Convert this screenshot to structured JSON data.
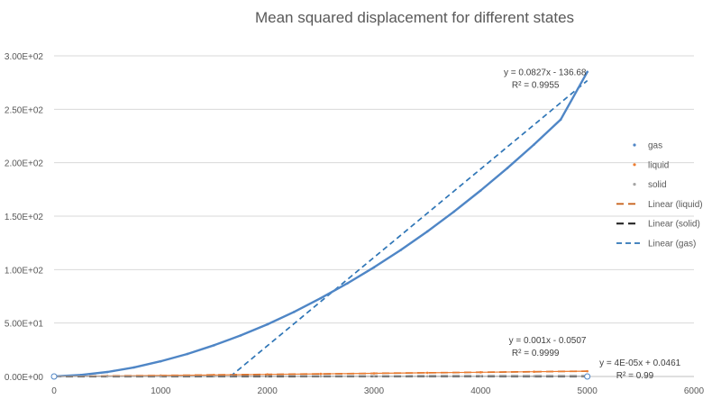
{
  "chart_data": {
    "type": "scatter",
    "title": "Mean squared displacement for different states",
    "xlabel": "",
    "ylabel": "",
    "xlim": [
      0,
      6000
    ],
    "ylim": [
      0,
      300
    ],
    "grid": {
      "y_major": true,
      "x_major": false
    },
    "x_ticks": [
      0,
      1000,
      2000,
      3000,
      4000,
      5000,
      6000
    ],
    "x_tick_labels": [
      "0",
      "1000",
      "2000",
      "3000",
      "4000",
      "5000",
      "6000"
    ],
    "y_ticks": [
      0,
      50,
      100,
      150,
      200,
      250,
      300
    ],
    "y_tick_labels": [
      "0.00E+00",
      "5.00E+01",
      "1.00E+02",
      "1.50E+02",
      "2.00E+02",
      "2.50E+02",
      "3.00E+02"
    ],
    "series": [
      {
        "name": "gas",
        "kind": "points",
        "color": "#4f86c6",
        "x": [
          0,
          250,
          500,
          750,
          1000,
          1250,
          1500,
          1750,
          2000,
          2250,
          2500,
          2750,
          3000,
          3250,
          3500,
          3750,
          4000,
          4250,
          4500,
          4750,
          5000
        ],
        "y": [
          0,
          1.4,
          4.2,
          8.5,
          14.2,
          21.1,
          29.2,
          38.4,
          48.8,
          60.4,
          73.2,
          87.1,
          102.1,
          118.3,
          135.7,
          154.3,
          174.0,
          194.9,
          217.0,
          240.3,
          285.0
        ]
      },
      {
        "name": "liquid",
        "kind": "points",
        "color": "#ed7d31",
        "x": [
          0,
          500,
          1000,
          1500,
          2000,
          2500,
          3000,
          3500,
          4000,
          4500,
          5000
        ],
        "y": [
          0,
          0.45,
          0.95,
          1.45,
          1.95,
          2.45,
          2.95,
          3.45,
          3.95,
          4.45,
          4.95
        ]
      },
      {
        "name": "solid",
        "kind": "points",
        "color": "#a5a5a5",
        "x": [
          0,
          500,
          1000,
          1500,
          2000,
          2500,
          3000,
          3500,
          4000,
          4500,
          5000
        ],
        "y": [
          0.05,
          0.07,
          0.09,
          0.11,
          0.13,
          0.15,
          0.17,
          0.19,
          0.21,
          0.23,
          0.25
        ]
      },
      {
        "name": "Linear (liquid)",
        "kind": "trendline",
        "color": "#c55a11",
        "dash": "long",
        "x": [
          0,
          5000
        ],
        "y": [
          -0.0507,
          4.9493
        ]
      },
      {
        "name": "Linear (solid)",
        "kind": "trendline",
        "color": "#262626",
        "dash": "long-heavy",
        "x": [
          0,
          5000
        ],
        "y": [
          0.0461,
          0.2461
        ]
      },
      {
        "name": "Linear (gas)",
        "kind": "trendline",
        "color": "#2e75b6",
        "dash": "medium",
        "x": [
          1652.7,
          5000
        ],
        "y": [
          0,
          276.82
        ]
      }
    ],
    "legend": {
      "position": "right",
      "entries": [
        {
          "label": "gas",
          "type": "marker",
          "color": "#4f86c6"
        },
        {
          "label": "liquid",
          "type": "marker",
          "color": "#ed7d31"
        },
        {
          "label": "solid",
          "type": "marker",
          "color": "#a5a5a5"
        },
        {
          "label": "Linear (liquid)",
          "type": "line",
          "color": "#c55a11",
          "dash": "long"
        },
        {
          "label": "Linear (solid)",
          "type": "line",
          "color": "#262626",
          "dash": "long-heavy"
        },
        {
          "label": "Linear (gas)",
          "type": "line",
          "color": "#2e75b6",
          "dash": "medium"
        }
      ]
    },
    "annotations": [
      {
        "series": "gas",
        "equation": "y = 0.0827x - 136.68",
        "r2": "R² = 0.9955",
        "anchor_x": 4990,
        "anchor_y": 282
      },
      {
        "series": "liquid",
        "equation": "y = 0.001x - 0.0507",
        "r2": "R² = 0.9999",
        "anchor_x": 4990,
        "anchor_y": 31
      },
      {
        "series": "solid",
        "equation": "y = 4E-05x + 0.0461",
        "r2": "R² = 0.99",
        "anchor_x": 5875,
        "anchor_y": 10
      }
    ]
  }
}
